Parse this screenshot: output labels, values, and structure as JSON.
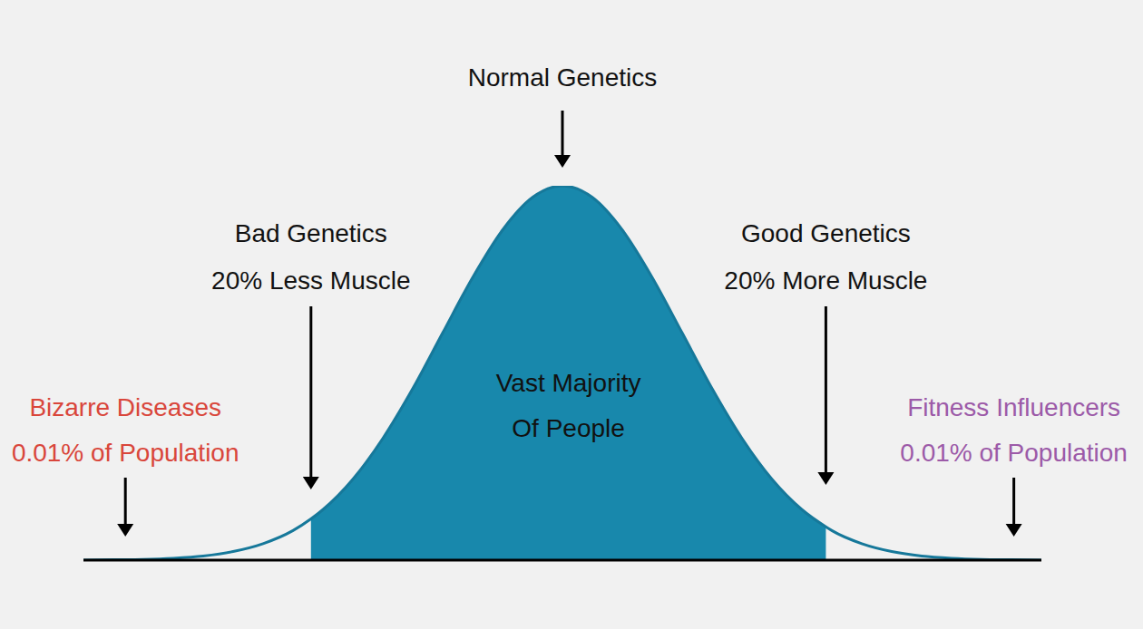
{
  "chart_data": {
    "type": "area",
    "x": [
      -4,
      -3.75,
      -3.5,
      -3.25,
      -3,
      -2.75,
      -2.5,
      -2.25,
      -2.1,
      -2,
      -1.75,
      -1.5,
      -1.25,
      -1,
      -0.75,
      -0.5,
      -0.25,
      0,
      0.25,
      0.5,
      0.75,
      1,
      1.25,
      1.5,
      1.75,
      2,
      2.2,
      2.25,
      2.5,
      2.75,
      3,
      3.25,
      3.5,
      3.75,
      4
    ],
    "values": [
      0,
      0.1,
      0.2,
      0.5,
      1.1,
      2.3,
      4.4,
      7.9,
      11.0,
      13.5,
      21.6,
      32.5,
      45.8,
      60.7,
      75.5,
      88.2,
      96.9,
      100,
      96.9,
      88.2,
      75.5,
      60.7,
      45.8,
      32.5,
      21.6,
      13.5,
      8.9,
      7.9,
      4.4,
      2.3,
      1.1,
      0.5,
      0.2,
      0.1,
      0
    ],
    "color": "#16789a",
    "xlim": [
      -4,
      4
    ],
    "ylim": [
      0,
      100
    ],
    "tick_labels": false,
    "grid": false,
    "shade": {
      "from": -2.1,
      "to": 2.2,
      "color": "#1888ac",
      "text": [
        "Vast Majority",
        "Of People"
      ]
    },
    "annotations": [
      {
        "text": [
          "Normal Genetics"
        ],
        "x": 0,
        "color": "#111111"
      },
      {
        "text": [
          "Bad Genetics",
          "20% Less Muscle"
        ],
        "x": -2.1,
        "color": "#111111"
      },
      {
        "text": [
          "Good Genetics",
          "20% More Muscle"
        ],
        "x": 2.2,
        "color": "#111111"
      },
      {
        "text": [
          "Bizarre Diseases",
          "0.01% of Population"
        ],
        "x": -3.65,
        "color": "#d9463b"
      },
      {
        "text": [
          "Fitness Influencers",
          "0.01% of Population"
        ],
        "x": 3.77,
        "color": "#9c5aa8"
      }
    ]
  }
}
